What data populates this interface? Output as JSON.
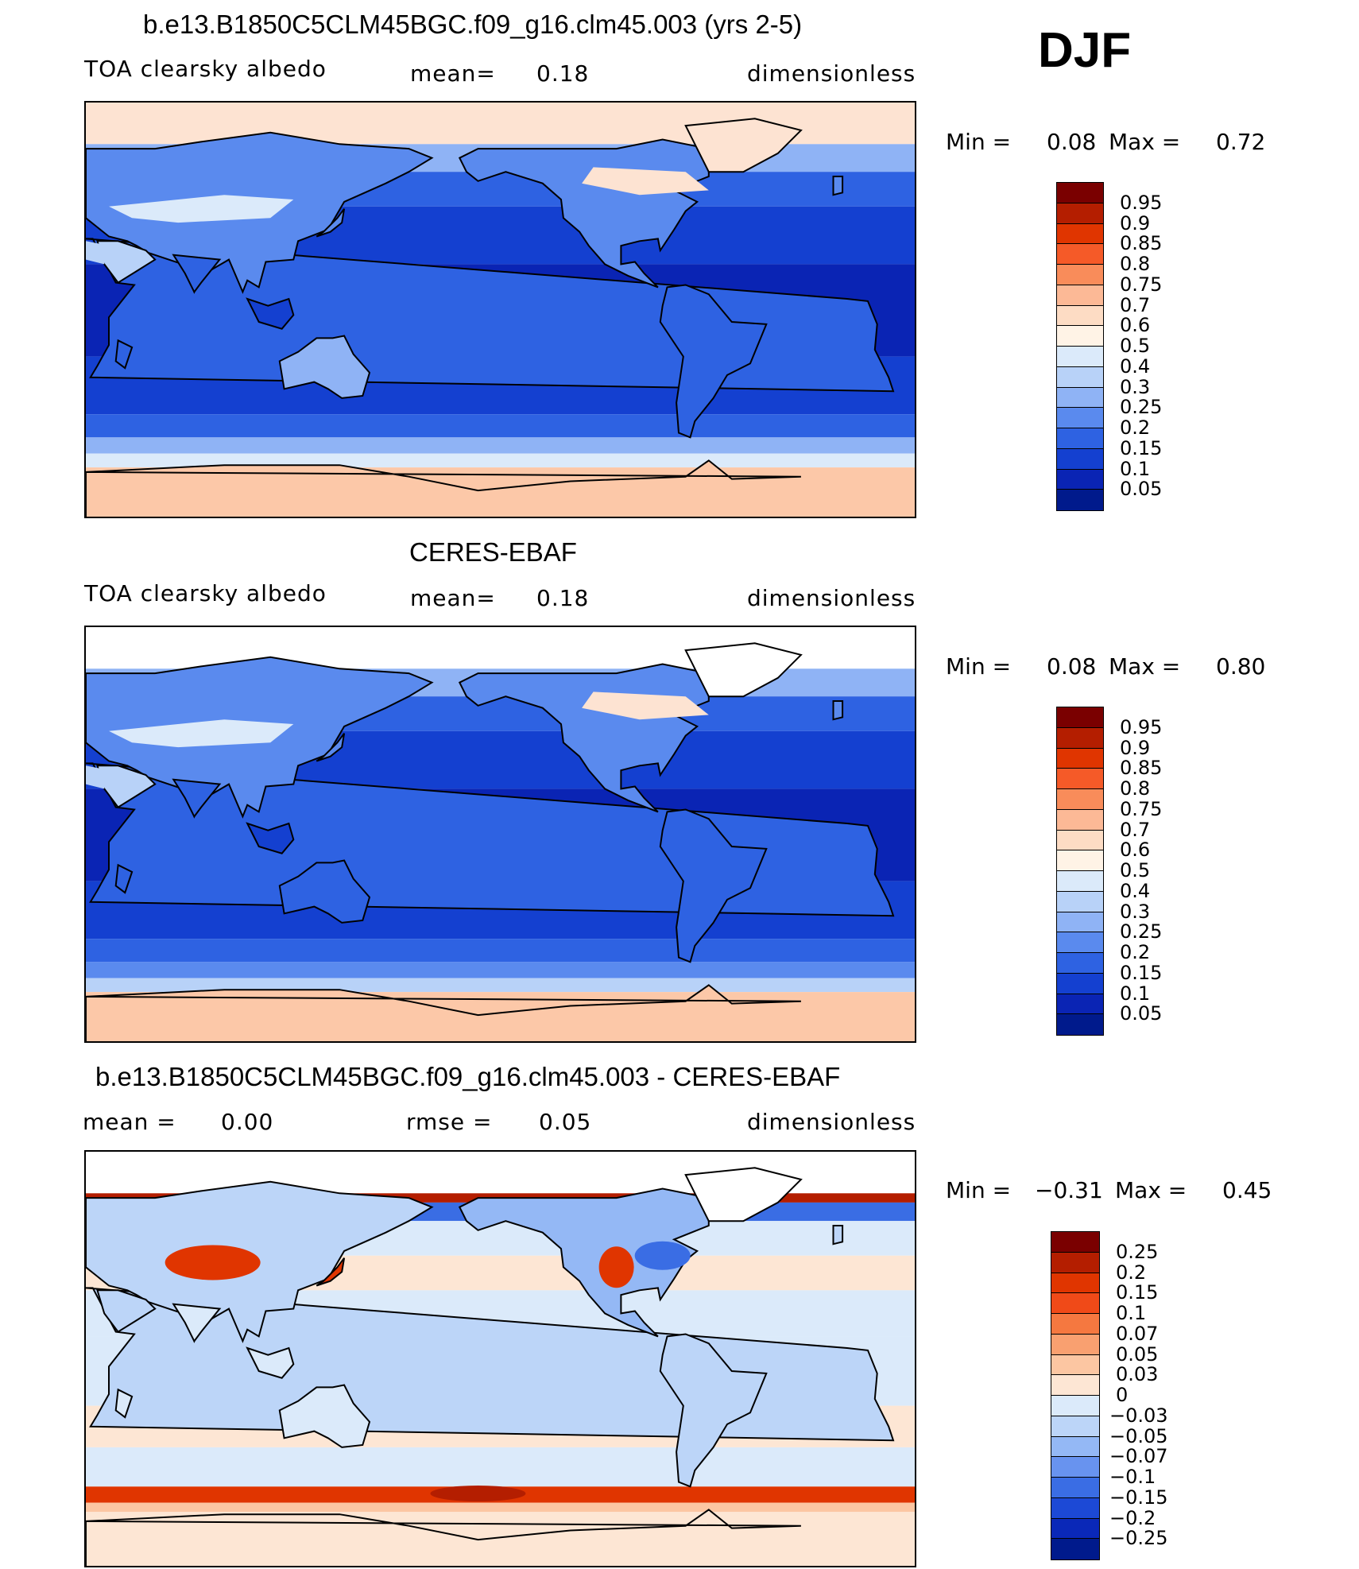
{
  "season": "DJF",
  "panels": [
    {
      "title": "b.e13.B1850C5CLM45BGC.f09_g16.clm45.003 (yrs 2-5)",
      "left_label": "TOA clearsky albedo",
      "mid_label": "mean=",
      "mid_value": "0.18",
      "right_label": "dimensionless",
      "min_label": "Min =",
      "min_value": "0.08",
      "max_label": "Max =",
      "max_value": "0.72",
      "colorbar": {
        "labels": [
          "0.95",
          "0.9",
          "0.85",
          "0.8",
          "0.75",
          "0.7",
          "0.6",
          "0.5",
          "0.4",
          "0.3",
          "0.25",
          "0.2",
          "0.15",
          "0.1",
          "0.05"
        ],
        "colors": [
          "#7a0000",
          "#b41e00",
          "#e03500",
          "#f55a28",
          "#f98c5a",
          "#fcb996",
          "#fddcc4",
          "#fff3e6",
          "#dbeafa",
          "#b8d2f8",
          "#8fb3f5",
          "#5a8aee",
          "#2e62e2",
          "#1440d0",
          "#0a24b4",
          "#001a8c"
        ]
      },
      "map_data": {
        "type": "global-contour-map",
        "variable": "TOA clearsky albedo",
        "approx_fields": {
          "tropical_ocean": 0.08,
          "midlatitude_ocean": 0.15,
          "southern_ocean_sea_ice_edge": 0.35,
          "antarctica": 0.65,
          "arctic_snow_land": 0.6,
          "sahara_arabia": 0.3,
          "australia_interior": 0.25
        }
      }
    },
    {
      "title": "CERES-EBAF",
      "left_label": "TOA clearsky albedo",
      "mid_label": "mean=",
      "mid_value": "0.18",
      "right_label": "dimensionless",
      "min_label": "Min =",
      "min_value": "0.08",
      "max_label": "Max =",
      "max_value": "0.80",
      "colorbar": {
        "labels": [
          "0.95",
          "0.9",
          "0.85",
          "0.8",
          "0.75",
          "0.7",
          "0.6",
          "0.5",
          "0.4",
          "0.3",
          "0.25",
          "0.2",
          "0.15",
          "0.1",
          "0.05"
        ],
        "colors": [
          "#7a0000",
          "#b41e00",
          "#e03500",
          "#f55a28",
          "#f98c5a",
          "#fcb996",
          "#fddcc4",
          "#fff3e6",
          "#dbeafa",
          "#b8d2f8",
          "#8fb3f5",
          "#5a8aee",
          "#2e62e2",
          "#1440d0",
          "#0a24b4",
          "#001a8c"
        ]
      },
      "map_data": {
        "type": "global-contour-map",
        "variable": "TOA clearsky albedo",
        "approx_fields": {
          "tropical_ocean": 0.08,
          "midlatitude_ocean": 0.15,
          "southern_ocean_sea_ice_edge": 0.3,
          "antarctica": 0.65,
          "arctic_snow_land": 0.55,
          "sahara_arabia": 0.3,
          "australia_interior": 0.2
        }
      }
    },
    {
      "title": "b.e13.B1850C5CLM45BGC.f09_g16.clm45.003 - CERES-EBAF",
      "left_label": "mean =",
      "left_value": "0.00",
      "mid_label": "rmse =",
      "mid_value": "0.05",
      "right_label": "dimensionless",
      "min_label": "Min =",
      "min_value": "−0.31",
      "max_label": "Max =",
      "max_value": "0.45",
      "colorbar": {
        "labels": [
          "0.25",
          "0.2",
          "0.15",
          "0.1",
          "0.07",
          "0.05",
          "0.03",
          "0",
          "−0.03",
          "−0.05",
          "−0.07",
          "−0.1",
          "−0.15",
          "−0.2",
          "−0.25"
        ],
        "colors": [
          "#7a0000",
          "#b41e00",
          "#e03500",
          "#f04a18",
          "#f57840",
          "#f9a070",
          "#fcc6a2",
          "#fde6d4",
          "#dbeafa",
          "#bcd5f8",
          "#94b8f5",
          "#6893ef",
          "#3a6de4",
          "#1c49d6",
          "#0a28b8",
          "#001a8c"
        ]
      },
      "map_data": {
        "type": "global-contour-map",
        "variable": "TOA clearsky albedo difference",
        "approx_fields": {
          "tropical_ocean": 0.0,
          "midlatitude_ocean": 0.01,
          "southern_ocean_sea_ice_edge": 0.2,
          "arctic_edge": 0.25,
          "central_asia": 0.15,
          "north_america_interior": -0.07,
          "antarctica": 0.03
        }
      }
    }
  ]
}
